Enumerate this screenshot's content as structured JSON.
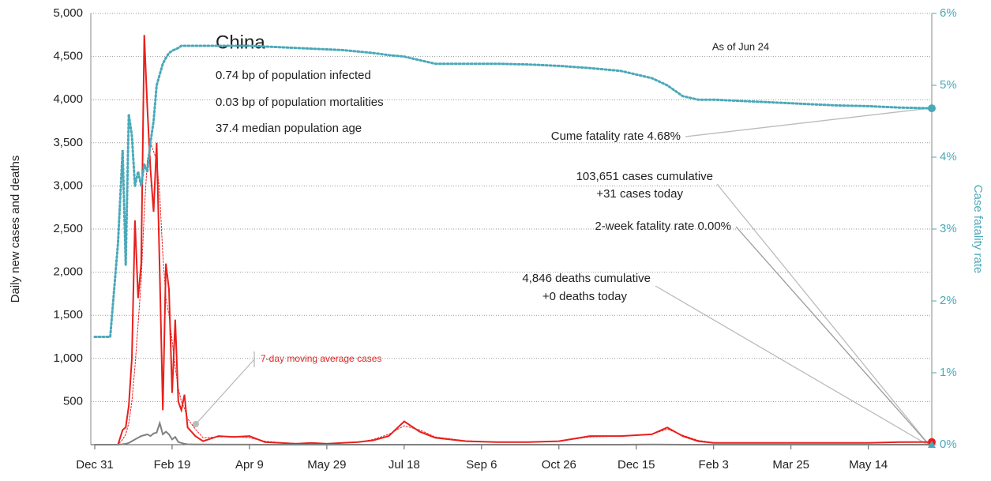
{
  "chart_data": {
    "type": "line",
    "title": "China",
    "subtitle": [
      "0.74 bp of population infected",
      "0.03 bp of population mortalities",
      "37.4 median population age"
    ],
    "date_note": "As of Jun 24",
    "y_label": "Daily new cases and deaths",
    "y2_label": "Case fatality rate",
    "annotations": {
      "cume_fatality": "Cume fatality rate 4.68%",
      "cases_cumulative": "103,651 cases cumulative",
      "cases_today": "+31 cases today",
      "two_week_fatality": "2-week fatality rate 0.00%",
      "deaths_cumulative": "4,846 deaths cumulative",
      "deaths_today": "+0 deaths today"
    },
    "x": [
      0,
      5,
      10,
      15,
      18,
      20,
      22,
      24,
      26,
      28,
      30,
      32,
      34,
      36,
      38,
      40,
      42,
      44,
      46,
      48,
      50,
      52,
      54,
      56,
      58,
      60,
      65,
      70,
      80,
      90,
      100,
      110,
      120,
      130,
      140,
      150,
      160,
      170,
      180,
      190,
      200,
      210,
      220,
      240,
      260,
      280,
      300,
      320,
      340,
      360,
      370,
      380,
      390,
      400,
      410,
      420,
      440,
      460,
      480,
      500,
      520,
      541
    ],
    "series": [
      {
        "color": "#e8201d",
        "style": "solid",
        "values": [
          0,
          0,
          0,
          0,
          170,
          200,
          450,
          1000,
          2600,
          1700,
          2100,
          4750,
          3900,
          3200,
          2700,
          3500,
          2000,
          400,
          2100,
          1800,
          600,
          1450,
          500,
          400,
          580,
          200,
          100,
          40,
          100,
          90,
          100,
          30,
          20,
          10,
          20,
          10,
          20,
          30,
          50,
          100,
          270,
          150,
          80,
          40,
          30,
          30,
          40,
          100,
          100,
          120,
          200,
          100,
          40,
          20,
          20,
          20,
          20,
          20,
          20,
          20,
          30,
          31
        ]
      },
      {
        "name": "7-day moving average cases",
        "color": "#e8201d",
        "style": "dotted",
        "values": [
          0,
          0,
          0,
          0,
          60,
          120,
          250,
          500,
          900,
          1400,
          1900,
          2700,
          3300,
          3500,
          3400,
          3300,
          2900,
          2200,
          1700,
          1500,
          1200,
          900,
          650,
          500,
          420,
          300,
          180,
          80,
          90,
          95,
          80,
          40,
          25,
          15,
          15,
          12,
          18,
          28,
          60,
          120,
          220,
          170,
          90,
          45,
          30,
          30,
          40,
          90,
          100,
          120,
          180,
          110,
          50,
          25,
          20,
          20,
          20,
          20,
          20,
          20,
          28,
          30
        ]
      },
      {
        "color": "#808080",
        "style": "solid",
        "values": [
          0,
          0,
          0,
          0,
          5,
          10,
          20,
          40,
          60,
          80,
          100,
          110,
          120,
          100,
          130,
          140,
          250,
          120,
          150,
          120,
          60,
          90,
          30,
          20,
          10,
          5,
          3,
          2,
          1,
          1,
          1,
          0,
          0,
          0,
          0,
          0,
          0,
          0,
          0,
          0,
          0,
          0,
          0,
          0,
          0,
          0,
          0,
          0,
          0,
          2,
          1,
          0,
          0,
          0,
          0,
          0,
          0,
          0,
          0,
          0,
          0,
          0
        ]
      },
      {
        "color": "#4aa9b9",
        "style": "dotted",
        "axis": "y2",
        "values": [
          1.5,
          1.5,
          1.5,
          2.8,
          4.1,
          2.5,
          4.6,
          4.3,
          3.6,
          3.8,
          3.6,
          3.9,
          3.8,
          4.2,
          4.5,
          5.0,
          5.15,
          5.3,
          5.38,
          5.45,
          5.48,
          5.5,
          5.52,
          5.55,
          5.55,
          5.55,
          5.55,
          5.55,
          5.55,
          5.55,
          5.55,
          5.54,
          5.53,
          5.52,
          5.51,
          5.5,
          5.49,
          5.47,
          5.45,
          5.42,
          5.4,
          5.35,
          5.3,
          5.3,
          5.3,
          5.29,
          5.27,
          5.24,
          5.2,
          5.1,
          5.0,
          4.85,
          4.8,
          4.8,
          4.79,
          4.78,
          4.76,
          4.74,
          4.72,
          4.71,
          4.69,
          4.68
        ]
      }
    ],
    "xlim": [
      0,
      541
    ],
    "xticks": [
      {
        "value": 0,
        "label": "Dec 31"
      },
      {
        "value": 50,
        "label": "Feb 19"
      },
      {
        "value": 100,
        "label": "Apr 9"
      },
      {
        "value": 150,
        "label": "May 29"
      },
      {
        "value": 200,
        "label": "Jul 18"
      },
      {
        "value": 250,
        "label": "Sep 6"
      },
      {
        "value": 300,
        "label": "Oct 26"
      },
      {
        "value": 350,
        "label": "Dec 15"
      },
      {
        "value": 400,
        "label": "Feb 3"
      },
      {
        "value": 450,
        "label": "Mar 25"
      },
      {
        "value": 500,
        "label": "May 14"
      }
    ],
    "ylim": [
      0,
      5000
    ],
    "yticks": [
      500,
      {
        "value": 1000,
        "label": "1,000"
      },
      {
        "value": 1500,
        "label": "1,500"
      },
      {
        "value": 2000,
        "label": "2,000"
      },
      {
        "value": 2500,
        "label": "2,500"
      },
      {
        "value": 3000,
        "label": "3,000"
      },
      {
        "value": 3500,
        "label": "3,500"
      },
      {
        "value": 4000,
        "label": "4,000"
      },
      {
        "value": 4500,
        "label": "4,500"
      },
      {
        "value": 5000,
        "label": "5,000"
      }
    ],
    "y2lim": [
      0,
      6
    ],
    "y2ticks": [
      {
        "value": 0,
        "label": "0%"
      },
      {
        "value": 1,
        "label": "1%"
      },
      {
        "value": 2,
        "label": "2%"
      },
      {
        "value": 3,
        "label": "3%"
      },
      {
        "value": 4,
        "label": "4%"
      },
      {
        "value": 5,
        "label": "5%"
      },
      {
        "value": 6,
        "label": "6%"
      }
    ],
    "grid": true
  }
}
